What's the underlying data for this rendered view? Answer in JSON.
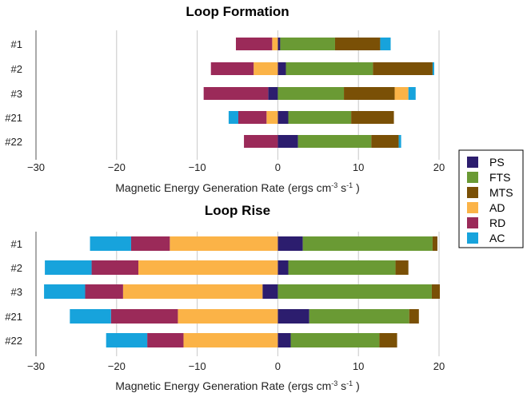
{
  "colors": {
    "PS": "#2c1d6e",
    "FTS": "#6a9a34",
    "MTS": "#7a5006",
    "AD": "#fbb347",
    "RD": "#9b2a59",
    "AC": "#17a3dc"
  },
  "legend": [
    "PS",
    "FTS",
    "MTS",
    "AD",
    "RD",
    "AC"
  ],
  "chart_data": [
    {
      "type": "bar",
      "orientation": "horizontal-stacked-diverging",
      "title": "Loop Formation",
      "xlabel": {
        "main": "Magnetic Energy Generation Rate (ergs cm",
        "sup1": "-3",
        "mid": " s",
        "sup2": "-1",
        "end": " )"
      },
      "xlim": [
        -30,
        20
      ],
      "xticks": [
        -30,
        -20,
        -10,
        0,
        10,
        20
      ],
      "grid": true,
      "categories": [
        "#1",
        "#2",
        "#3",
        "#21",
        "#22"
      ],
      "series": [
        {
          "name": "PS",
          "values": [
            0.3,
            1.0,
            -1.2,
            1.3,
            2.5
          ]
        },
        {
          "name": "FTS",
          "values": [
            6.8,
            10.8,
            8.2,
            7.8,
            9.1
          ]
        },
        {
          "name": "MTS",
          "values": [
            5.6,
            7.4,
            6.3,
            5.3,
            3.4
          ]
        },
        {
          "name": "AD",
          "values": [
            -0.7,
            -3.0,
            1.7,
            -1.4,
            0
          ]
        },
        {
          "name": "RD",
          "values": [
            -4.5,
            -5.3,
            -8.0,
            -3.5,
            -4.2
          ]
        },
        {
          "name": "AC",
          "values": [
            1.3,
            0.2,
            0.9,
            -1.2,
            0.3
          ]
        }
      ]
    },
    {
      "type": "bar",
      "orientation": "horizontal-stacked-diverging",
      "title": "Loop Rise",
      "xlabel": {
        "main": "Magnetic Energy Generation Rate (ergs cm",
        "sup1": "-3",
        "mid": " s",
        "sup2": "-1",
        "end": " )"
      },
      "xlim": [
        -30,
        20
      ],
      "xticks": [
        -30,
        -20,
        -10,
        0,
        10,
        20
      ],
      "grid": true,
      "categories": [
        "#1",
        "#2",
        "#3",
        "#21",
        "#22"
      ],
      "series": [
        {
          "name": "PS",
          "values": [
            3.1,
            1.3,
            -1.9,
            3.9,
            1.6
          ]
        },
        {
          "name": "FTS",
          "values": [
            16.1,
            13.3,
            19.1,
            12.4,
            11.0
          ]
        },
        {
          "name": "MTS",
          "values": [
            0.6,
            1.6,
            1.0,
            1.2,
            2.2
          ]
        },
        {
          "name": "AD",
          "values": [
            -13.4,
            -17.3,
            -17.3,
            -12.4,
            -11.7
          ]
        },
        {
          "name": "RD",
          "values": [
            -4.8,
            -5.8,
            -4.7,
            -8.3,
            -4.5
          ]
        },
        {
          "name": "AC",
          "values": [
            -5.1,
            -5.8,
            -5.1,
            -5.1,
            -5.1
          ]
        }
      ]
    }
  ]
}
